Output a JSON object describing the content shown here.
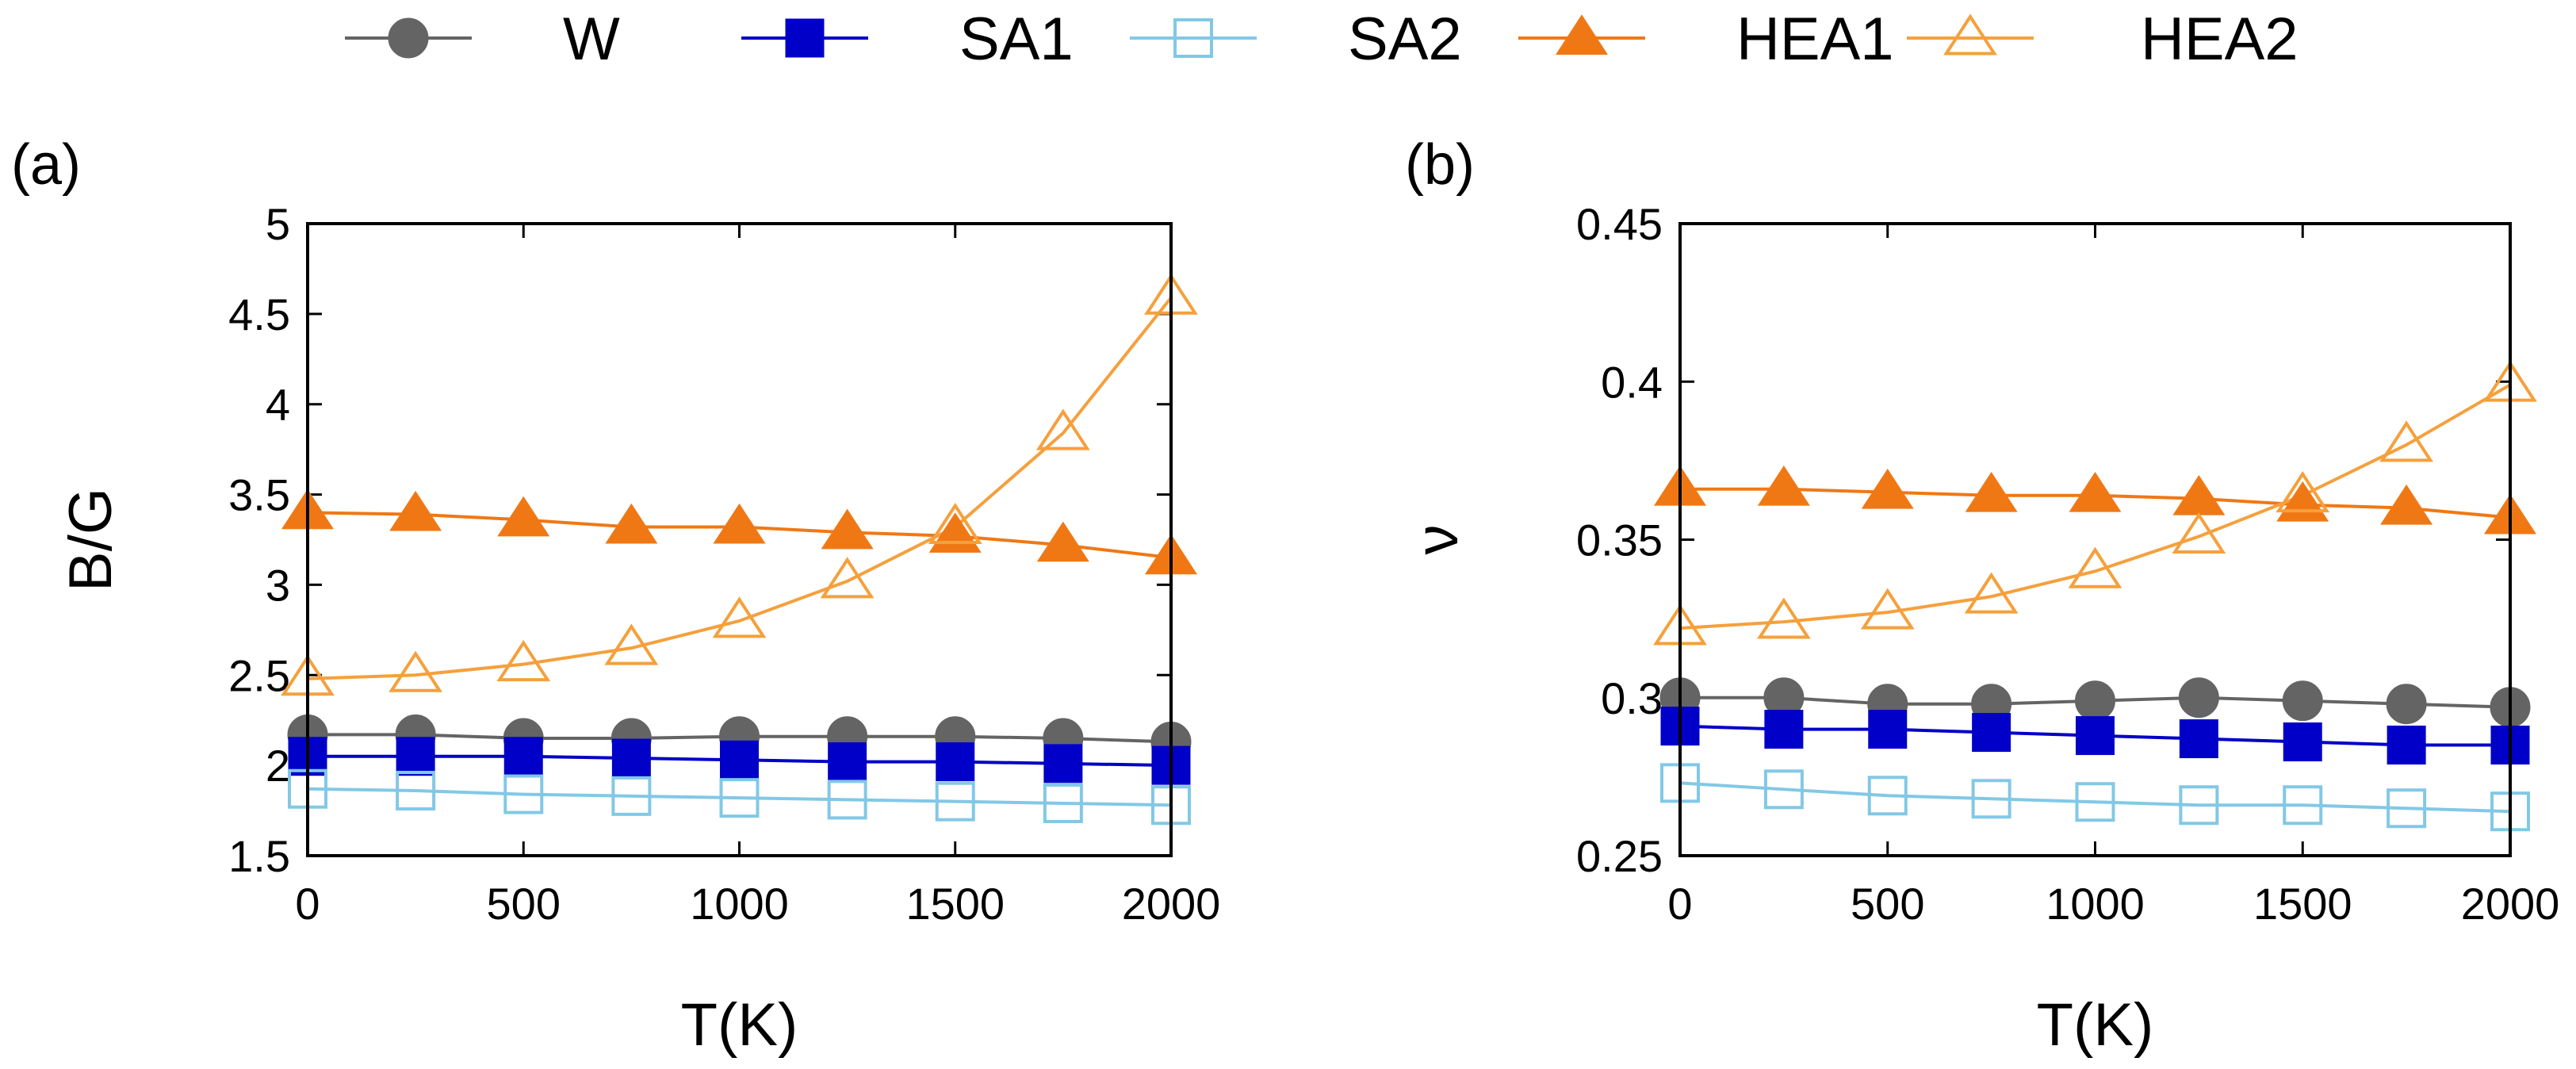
{
  "legend": [
    {
      "name": "W",
      "color": "#646464",
      "marker": "circle-filled"
    },
    {
      "name": "SA1",
      "color": "#0000c8",
      "marker": "square-filled"
    },
    {
      "name": "SA2",
      "color": "#82c8e6",
      "marker": "square-open"
    },
    {
      "name": "HEA1",
      "color": "#f07814",
      "marker": "triangle-filled"
    },
    {
      "name": "HEA2",
      "color": "#f5a03c",
      "marker": "triangle-open"
    }
  ],
  "chart_data": [
    {
      "type": "line",
      "panel_label": "(a)",
      "xlabel": "T(K)",
      "ylabel": "B/G",
      "xlim": [
        0,
        2000
      ],
      "ylim": [
        1.5,
        5
      ],
      "xticks": [
        "0",
        "500",
        "1000",
        "1500",
        "2000"
      ],
      "yticks": [
        "1.5",
        "2",
        "2.5",
        "3",
        "3.5",
        "4",
        "4.5",
        "5"
      ],
      "x": [
        0,
        250,
        500,
        750,
        1000,
        1250,
        1500,
        1750,
        2000
      ],
      "series": [
        {
          "name": "W",
          "values": [
            2.17,
            2.17,
            2.15,
            2.15,
            2.16,
            2.16,
            2.16,
            2.15,
            2.13
          ]
        },
        {
          "name": "SA1",
          "values": [
            2.05,
            2.05,
            2.05,
            2.04,
            2.03,
            2.02,
            2.02,
            2.01,
            2.0
          ]
        },
        {
          "name": "SA2",
          "values": [
            1.87,
            1.86,
            1.84,
            1.83,
            1.82,
            1.81,
            1.8,
            1.79,
            1.78
          ]
        },
        {
          "name": "HEA1",
          "values": [
            3.4,
            3.39,
            3.36,
            3.32,
            3.32,
            3.29,
            3.27,
            3.22,
            3.15
          ]
        },
        {
          "name": "HEA2",
          "values": [
            2.48,
            2.5,
            2.56,
            2.65,
            2.8,
            3.02,
            3.32,
            3.84,
            4.59
          ]
        }
      ]
    },
    {
      "type": "line",
      "panel_label": "(b)",
      "xlabel": "T(K)",
      "ylabel": "ν",
      "xlim": [
        0,
        2000
      ],
      "ylim": [
        0.25,
        0.45
      ],
      "xticks": [
        "0",
        "500",
        "1000",
        "1500",
        "2000"
      ],
      "yticks": [
        "0.25",
        "0.3",
        "0.35",
        "0.4",
        "0.45"
      ],
      "x": [
        0,
        250,
        500,
        750,
        1000,
        1250,
        1500,
        1750,
        2000
      ],
      "series": [
        {
          "name": "W",
          "values": [
            0.3,
            0.3,
            0.298,
            0.298,
            0.299,
            0.3,
            0.299,
            0.298,
            0.297
          ]
        },
        {
          "name": "SA1",
          "values": [
            0.291,
            0.29,
            0.29,
            0.289,
            0.288,
            0.287,
            0.286,
            0.285,
            0.285
          ]
        },
        {
          "name": "SA2",
          "values": [
            0.273,
            0.271,
            0.269,
            0.268,
            0.267,
            0.266,
            0.266,
            0.265,
            0.264
          ]
        },
        {
          "name": "HEA1",
          "values": [
            0.366,
            0.366,
            0.365,
            0.364,
            0.364,
            0.363,
            0.361,
            0.36,
            0.357
          ]
        },
        {
          "name": "HEA2",
          "values": [
            0.322,
            0.324,
            0.327,
            0.332,
            0.34,
            0.351,
            0.364,
            0.38,
            0.399
          ]
        }
      ]
    }
  ]
}
